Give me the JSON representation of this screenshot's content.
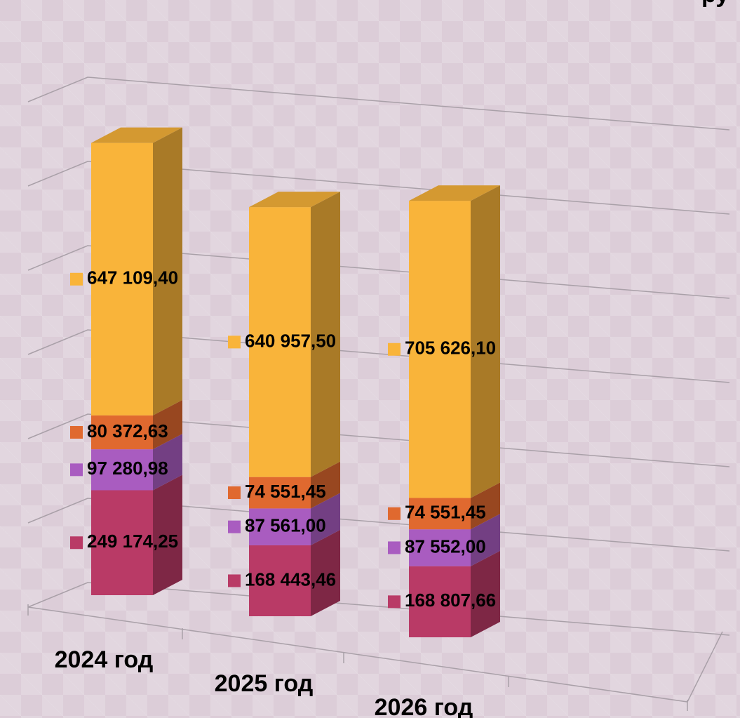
{
  "chart_data": {
    "type": "bar",
    "stacked": true,
    "unit": "ру",
    "categories": [
      "2024 год",
      "2025 год",
      "2026 год"
    ],
    "series": [
      {
        "color": "#b93a66",
        "values": [
          249174.25,
          168443.46,
          168807.66
        ],
        "value_labels": [
          "249 174,25",
          "168 443,46",
          "168 807,66"
        ]
      },
      {
        "color": "#a95cc0",
        "values": [
          97280.98,
          87561.0,
          87552.0
        ],
        "value_labels": [
          "97 280,98",
          "87 561,00",
          "87 552,00"
        ]
      },
      {
        "color": "#e0692f",
        "values": [
          80372.63,
          74551.45,
          74551.45
        ],
        "value_labels": [
          "80 372,63",
          "74 551,45",
          "74 551,45"
        ]
      },
      {
        "color": "#f9b43a",
        "values": [
          647109.4,
          640957.5,
          705626.1
        ],
        "value_labels": [
          "647 109,40",
          "640 957,50",
          "705 626,10"
        ]
      }
    ],
    "ylim": [
      0,
      1200000
    ],
    "yticks": [
      0,
      200000,
      400000,
      600000,
      800000,
      1000000,
      1200000
    ],
    "grid": true
  }
}
